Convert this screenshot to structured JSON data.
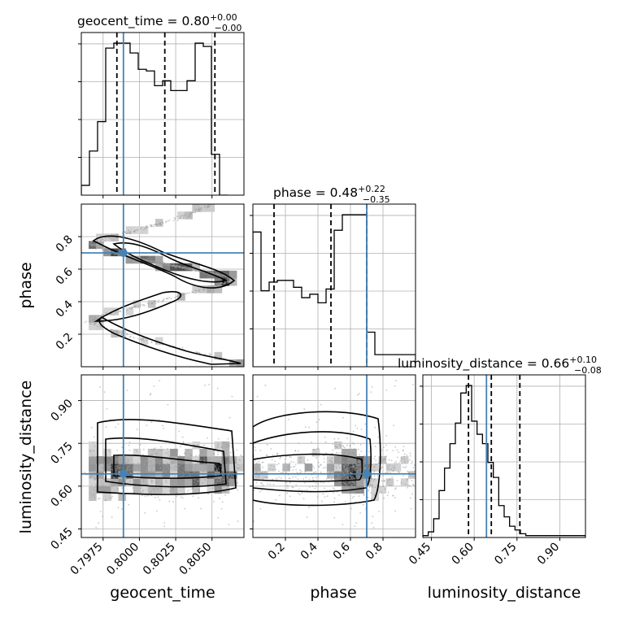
{
  "chart_data": {
    "type": "corner",
    "parameters": [
      "geocent_time",
      "phase",
      "luminosity_distance"
    ],
    "grid": true,
    "truth_color": "#4682b4",
    "titles": [
      {
        "param": "geocent_time",
        "name": "geocent_time",
        "median": "0.80",
        "upper": "+0.00",
        "lower": "−0.00"
      },
      {
        "param": "phase",
        "name": "phase",
        "median": "0.48",
        "upper": "+0.22",
        "lower": "−0.35"
      },
      {
        "param": "luminosity_distance",
        "name": "luminosity_distance",
        "median": "0.66",
        "upper": "+0.10",
        "lower": "−0.08"
      }
    ],
    "axes": {
      "geocent_time": {
        "range": [
          0.796,
          0.8072
        ],
        "ticks": [
          0.7975,
          0.8,
          0.8025,
          0.805
        ],
        "tick_labels": [
          "0.7975",
          "0.8000",
          "0.8025",
          "0.8050"
        ]
      },
      "phase": {
        "range": [
          0.0,
          1.0
        ],
        "ticks": [
          0.2,
          0.4,
          0.6,
          0.8
        ],
        "tick_labels": [
          "0.2",
          "0.4",
          "0.6",
          "0.8"
        ]
      },
      "luminosity_distance": {
        "range": [
          0.42,
          0.99
        ],
        "ticks": [
          0.45,
          0.6,
          0.75,
          0.9
        ],
        "tick_labels": [
          "0.45",
          "0.60",
          "0.75",
          "0.90"
        ]
      }
    },
    "truths": {
      "geocent_time": 0.7989,
      "phase": 0.7,
      "luminosity_distance": 0.643
    },
    "quantiles": {
      "geocent_time": [
        0.79845,
        0.80175,
        0.8052
      ],
      "phase": [
        0.13,
        0.48,
        0.7
      ],
      "luminosity_distance": [
        0.58,
        0.66,
        0.76
      ]
    },
    "histograms": {
      "geocent_time": {
        "bin_edges_start": 0.796,
        "bin_width": 0.00056,
        "counts": [
          6,
          27,
          45,
          90,
          93,
          93,
          87,
          77,
          76,
          67,
          70,
          64,
          64,
          70,
          93,
          91,
          25,
          0
        ]
      },
      "phase": {
        "bin_edges_start": 0.0,
        "bin_width": 0.05,
        "counts": [
          78,
          44,
          49,
          50,
          50,
          46,
          40,
          42,
          37,
          45,
          79,
          88,
          88,
          88,
          20,
          7,
          7,
          7,
          7,
          7
        ]
      },
      "luminosity_distance": {
        "bin_edges_start": 0.42,
        "bin_width": 0.019,
        "counts": [
          1,
          3,
          10,
          25,
          37,
          50,
          61,
          77,
          81,
          62,
          55,
          50,
          40,
          32,
          17,
          11,
          6,
          4,
          2,
          1,
          1,
          1,
          1,
          1,
          1,
          1,
          1,
          1,
          1,
          1
        ]
      }
    }
  }
}
